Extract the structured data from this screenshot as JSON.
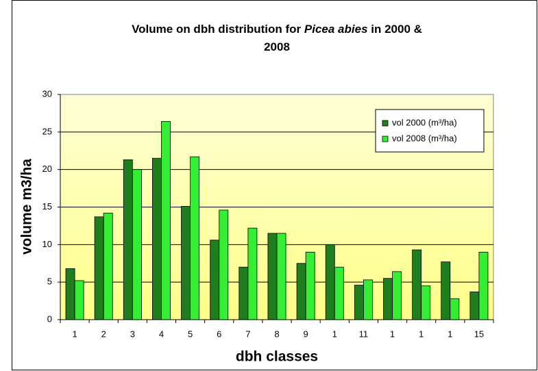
{
  "chart_data": {
    "type": "bar",
    "title": [
      [
        {
          "text": "Volume on dbh distribution for ",
          "italic": false
        },
        {
          "text": "Picea abies",
          "italic": true
        },
        {
          "text": " in 2000 &",
          "italic": false
        }
      ],
      [
        {
          "text": "2008",
          "italic": false
        }
      ]
    ],
    "x_label": "dbh classes",
    "y_label": "volume m3/ha",
    "categories": [
      "1",
      "2",
      "3",
      "4",
      "5",
      "6",
      "7",
      "8",
      "9",
      "1",
      "11",
      "1",
      "1",
      "1",
      "15"
    ],
    "series": [
      {
        "name": "vol 2000 (m³/ha)",
        "color": "#1f7f1f",
        "values": [
          6.8,
          13.7,
          21.3,
          21.5,
          15.1,
          10.6,
          7.0,
          11.5,
          7.5,
          10.0,
          4.6,
          5.5,
          9.3,
          7.7,
          3.7
        ]
      },
      {
        "name": "vol 2008 (m³/ha)",
        "color": "#33ee33",
        "values": [
          5.2,
          14.2,
          20.0,
          26.4,
          21.7,
          14.6,
          12.2,
          11.5,
          9.0,
          7.0,
          5.3,
          6.4,
          4.5,
          2.8,
          9.0
        ]
      }
    ],
    "ylim": [
      0,
      30
    ],
    "yticks": [
      0,
      5,
      10,
      15,
      20,
      25,
      30
    ],
    "grid": true,
    "legend": "upper right"
  }
}
